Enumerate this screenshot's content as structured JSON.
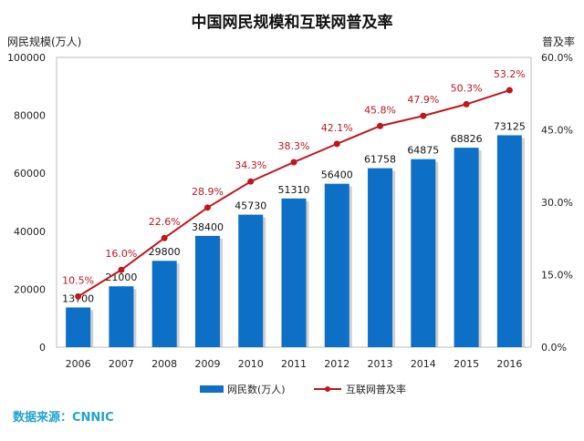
{
  "chart_data": {
    "type": "bar+line",
    "title": "中国网民规模和互联网普及率",
    "ylabel_left": "网民规模(万人)",
    "ylabel_right": "普及率",
    "ylim_left": [
      0,
      100000
    ],
    "yticks_left": [
      "0",
      "20000",
      "40000",
      "60000",
      "80000",
      "100000"
    ],
    "ylim_right": [
      0,
      60
    ],
    "yticks_right": [
      "0.0%",
      "15.0%",
      "30.0%",
      "45.0%",
      "60.0%"
    ],
    "categories": [
      "2006",
      "2007",
      "2008",
      "2009",
      "2010",
      "2011",
      "2012",
      "2013",
      "2014",
      "2015",
      "2016"
    ],
    "series": [
      {
        "name": "网民数(万人)",
        "type": "bar",
        "axis": "left",
        "color": "#0e6fc6",
        "values": [
          13700,
          21000,
          29800,
          38400,
          45730,
          51310,
          56400,
          61758,
          64875,
          68826,
          73125
        ],
        "labels": [
          "13700",
          "21000",
          "29800",
          "38400",
          "45730",
          "51310",
          "56400",
          "61758",
          "64875",
          "68826",
          "73125"
        ]
      },
      {
        "name": "互联网普及率",
        "type": "line",
        "axis": "right",
        "color": "#c0161c",
        "values": [
          10.5,
          16.0,
          22.6,
          28.9,
          34.3,
          38.3,
          42.1,
          45.8,
          47.9,
          50.3,
          53.2
        ],
        "labels": [
          "10.5%",
          "16.0%",
          "22.6%",
          "28.9%",
          "34.3%",
          "38.3%",
          "42.1%",
          "45.8%",
          "47.9%",
          "50.3%",
          "53.2%"
        ]
      }
    ],
    "legend_position": "bottom",
    "grid": false,
    "source": "数据来源：CNNIC"
  }
}
